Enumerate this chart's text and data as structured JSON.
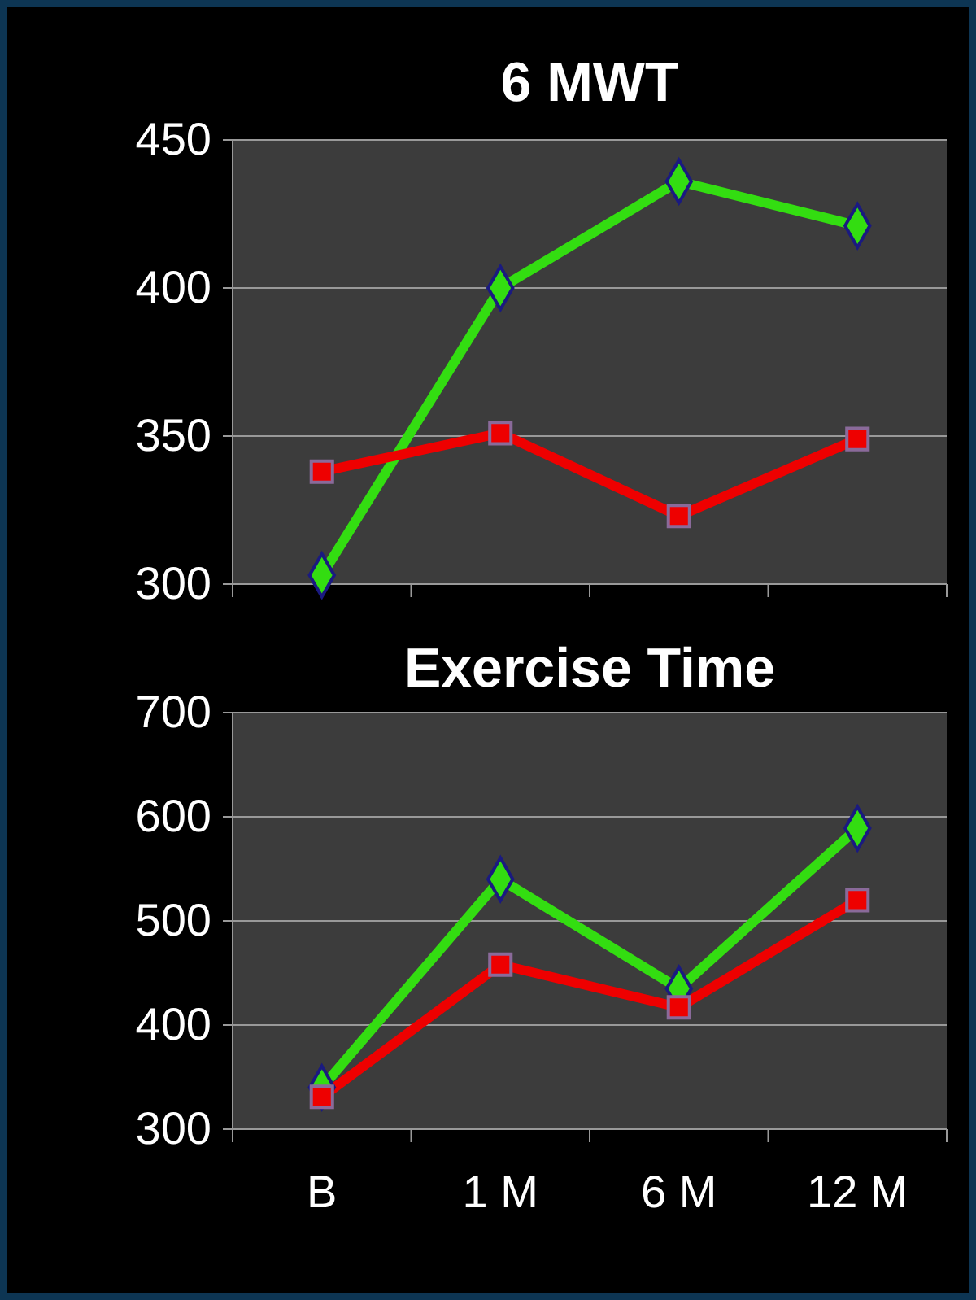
{
  "chart_data": [
    {
      "type": "line",
      "title": "6 MWT",
      "categories": [
        null,
        null,
        null,
        null
      ],
      "tick_labels": "y",
      "ylim": [
        300,
        450
      ],
      "yticks": [
        300,
        350,
        400,
        450
      ],
      "grid": "y",
      "series": [
        {
          "color": "#33dd11",
          "marker": "diamond",
          "values": [
            303,
            400,
            436,
            421
          ]
        },
        {
          "color": "#ee0000",
          "marker": "square",
          "values": [
            338,
            351,
            323,
            349
          ]
        }
      ]
    },
    {
      "type": "line",
      "title": "Exercise Time",
      "categories": [
        "B",
        "1 M",
        "6 M",
        "12 M"
      ],
      "ylim": [
        300,
        700
      ],
      "yticks": [
        300,
        400,
        500,
        600,
        700
      ],
      "grid": "y",
      "series": [
        {
          "color": "#33dd11",
          "marker": "diamond",
          "values": [
            340,
            540,
            435,
            589
          ]
        },
        {
          "color": "#ee0000",
          "marker": "square",
          "values": [
            331,
            458,
            417,
            520
          ]
        }
      ]
    }
  ]
}
